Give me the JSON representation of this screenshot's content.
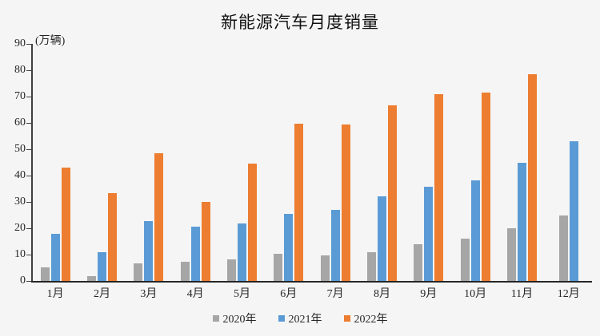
{
  "title": "新能源汽车月度销量",
  "unit_label": "(万辆)",
  "colors": {
    "background": "#f5f5f5",
    "axis": "#404040",
    "baseline": "#262626",
    "text": "#262626",
    "series_2020": "#a6a6a6",
    "series_2021": "#5b9bd5",
    "series_2022": "#ed7d31"
  },
  "chart_data": {
    "type": "bar",
    "title": "新能源汽车月度销量",
    "xlabel": "",
    "ylabel": "(万辆)",
    "categories": [
      "1月",
      "2月",
      "3月",
      "4月",
      "5月",
      "6月",
      "7月",
      "8月",
      "9月",
      "10月",
      "11月",
      "12月"
    ],
    "series": [
      {
        "name": "2020年",
        "color": "#a6a6a6",
        "values": [
          5.2,
          1.8,
          6.6,
          7.2,
          8.2,
          10.4,
          9.8,
          10.9,
          13.8,
          16.0,
          20.0,
          24.8
        ]
      },
      {
        "name": "2021年",
        "color": "#5b9bd5",
        "values": [
          17.9,
          11.0,
          22.6,
          20.6,
          21.7,
          25.6,
          27.1,
          32.1,
          35.7,
          38.3,
          45.0,
          53.0
        ]
      },
      {
        "name": "2022年",
        "color": "#ed7d31",
        "values": [
          43.0,
          33.4,
          48.4,
          29.9,
          44.7,
          59.6,
          59.3,
          66.6,
          70.8,
          71.4,
          78.6,
          null
        ]
      }
    ],
    "ylim": [
      0,
      90
    ],
    "yticks": [
      0,
      10,
      20,
      30,
      40,
      50,
      60,
      70,
      80,
      90
    ],
    "grid": false,
    "legend_position": "bottom"
  }
}
